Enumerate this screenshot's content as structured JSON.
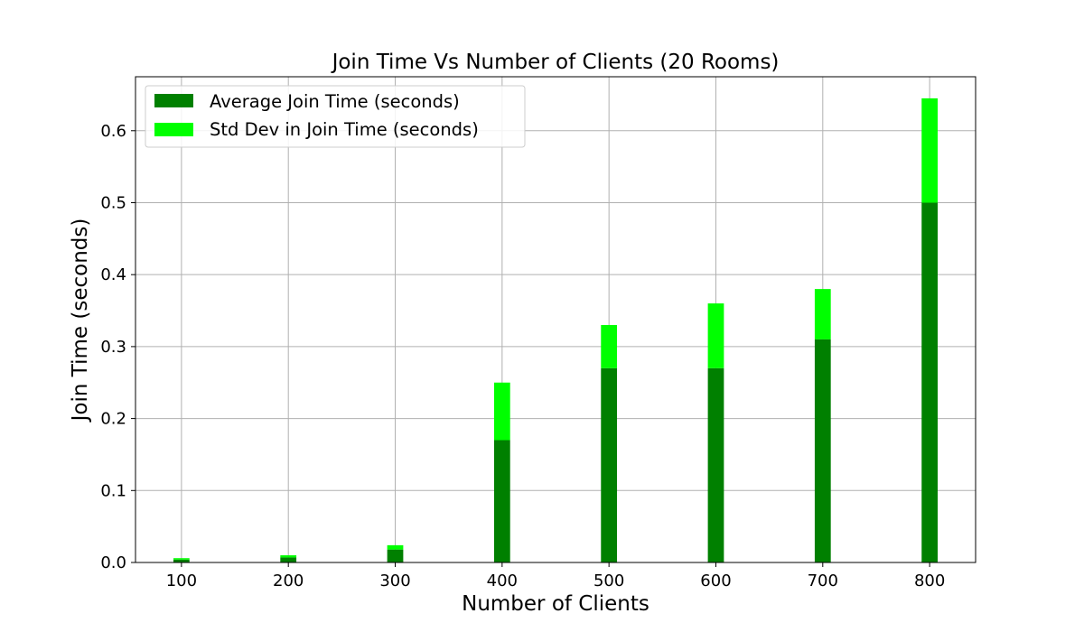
{
  "chart_data": {
    "type": "bar",
    "stacked": true,
    "title": "Join Time Vs Number of Clients (20 Rooms)",
    "xlabel": "Number of Clients",
    "ylabel": "Join Time (seconds)",
    "categories": [
      "100",
      "200",
      "300",
      "400",
      "500",
      "600",
      "700",
      "800"
    ],
    "x": [
      100,
      200,
      300,
      400,
      500,
      600,
      700,
      800
    ],
    "xlim": [
      57,
      843
    ],
    "ylim": [
      0,
      0.675
    ],
    "yticks": [
      0.0,
      0.1,
      0.2,
      0.3,
      0.4,
      0.5,
      0.6
    ],
    "ytick_labels": [
      "0.0",
      "0.1",
      "0.2",
      "0.3",
      "0.4",
      "0.5",
      "0.6"
    ],
    "grid": true,
    "legend_position": "top-left",
    "series": [
      {
        "name": "Average Join Time (seconds)",
        "color": "#008000",
        "values": [
          0.004,
          0.007,
          0.018,
          0.17,
          0.27,
          0.27,
          0.31,
          0.5
        ]
      },
      {
        "name": "Std Dev in Join Time (seconds)",
        "color": "#00ff00",
        "values": [
          0.002,
          0.003,
          0.006,
          0.08,
          0.06,
          0.09,
          0.07,
          0.145
        ]
      }
    ]
  }
}
